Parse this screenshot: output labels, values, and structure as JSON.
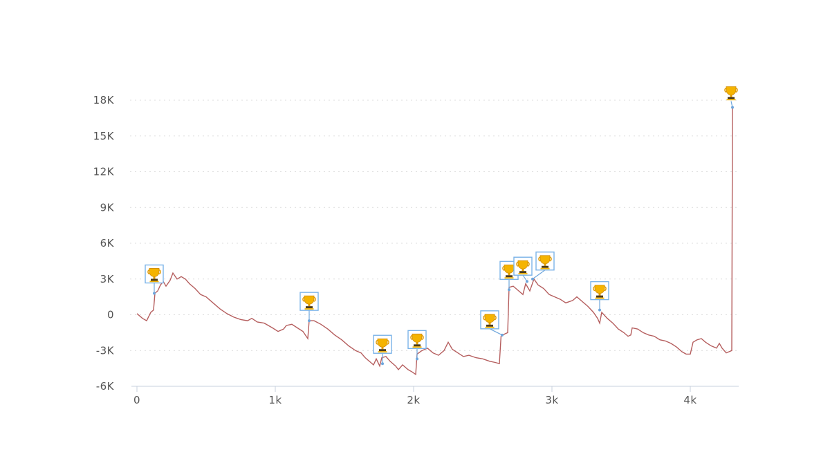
{
  "chart_data": {
    "type": "line",
    "title": "",
    "xlabel": "",
    "ylabel": "",
    "xlim": [
      0,
      4350
    ],
    "ylim": [
      -6000,
      18000
    ],
    "x_ticks": [
      0,
      1000,
      2000,
      3000,
      4000
    ],
    "x_tick_labels": [
      "0",
      "1k",
      "2k",
      "3k",
      "4k"
    ],
    "y_ticks": [
      -6000,
      -3000,
      0,
      3000,
      6000,
      9000,
      12000,
      15000,
      18000
    ],
    "y_tick_labels": [
      "-6K",
      "-3K",
      "0",
      "3K",
      "6K",
      "9K",
      "12K",
      "15K",
      "18K"
    ],
    "grid": true,
    "series": [
      {
        "color": "#b55e5e",
        "points": [
          [
            0,
            100
          ],
          [
            40,
            -300
          ],
          [
            70,
            -500
          ],
          [
            100,
            200
          ],
          [
            120,
            400
          ],
          [
            130,
            1800
          ],
          [
            150,
            2000
          ],
          [
            170,
            2500
          ],
          [
            190,
            2800
          ],
          [
            210,
            2400
          ],
          [
            240,
            2900
          ],
          [
            260,
            3500
          ],
          [
            290,
            3000
          ],
          [
            320,
            3200
          ],
          [
            350,
            3000
          ],
          [
            380,
            2600
          ],
          [
            420,
            2200
          ],
          [
            460,
            1700
          ],
          [
            500,
            1500
          ],
          [
            550,
            1000
          ],
          [
            600,
            500
          ],
          [
            650,
            100
          ],
          [
            700,
            -200
          ],
          [
            750,
            -400
          ],
          [
            800,
            -500
          ],
          [
            830,
            -300
          ],
          [
            870,
            -600
          ],
          [
            920,
            -700
          ],
          [
            980,
            -1100
          ],
          [
            1020,
            -1400
          ],
          [
            1060,
            -1200
          ],
          [
            1080,
            -900
          ],
          [
            1120,
            -800
          ],
          [
            1160,
            -1100
          ],
          [
            1200,
            -1400
          ],
          [
            1235,
            -2000
          ],
          [
            1245,
            -500
          ],
          [
            1280,
            -500
          ],
          [
            1330,
            -800
          ],
          [
            1380,
            -1200
          ],
          [
            1430,
            -1700
          ],
          [
            1480,
            -2100
          ],
          [
            1530,
            -2600
          ],
          [
            1580,
            -3000
          ],
          [
            1620,
            -3200
          ],
          [
            1650,
            -3600
          ],
          [
            1690,
            -4000
          ],
          [
            1710,
            -4200
          ],
          [
            1730,
            -3700
          ],
          [
            1755,
            -4300
          ],
          [
            1770,
            -3600
          ],
          [
            1800,
            -3500
          ],
          [
            1830,
            -3900
          ],
          [
            1870,
            -4300
          ],
          [
            1890,
            -4600
          ],
          [
            1920,
            -4200
          ],
          [
            1960,
            -4600
          ],
          [
            1990,
            -4800
          ],
          [
            2015,
            -5000
          ],
          [
            2025,
            -3300
          ],
          [
            2060,
            -3000
          ],
          [
            2100,
            -2800
          ],
          [
            2140,
            -3200
          ],
          [
            2180,
            -3400
          ],
          [
            2220,
            -3000
          ],
          [
            2250,
            -2300
          ],
          [
            2280,
            -2900
          ],
          [
            2320,
            -3200
          ],
          [
            2360,
            -3500
          ],
          [
            2400,
            -3400
          ],
          [
            2450,
            -3600
          ],
          [
            2500,
            -3700
          ],
          [
            2550,
            -3900
          ],
          [
            2590,
            -4000
          ],
          [
            2620,
            -4100
          ],
          [
            2632,
            -1800
          ],
          [
            2660,
            -1600
          ],
          [
            2680,
            -1500
          ],
          [
            2690,
            2300
          ],
          [
            2720,
            2400
          ],
          [
            2760,
            2000
          ],
          [
            2790,
            1700
          ],
          [
            2810,
            2600
          ],
          [
            2840,
            2000
          ],
          [
            2870,
            3000
          ],
          [
            2900,
            2500
          ],
          [
            2940,
            2200
          ],
          [
            2980,
            1700
          ],
          [
            3020,
            1500
          ],
          [
            3060,
            1300
          ],
          [
            3100,
            1000
          ],
          [
            3150,
            1200
          ],
          [
            3180,
            1500
          ],
          [
            3220,
            1100
          ],
          [
            3260,
            700
          ],
          [
            3300,
            200
          ],
          [
            3330,
            -300
          ],
          [
            3345,
            -700
          ],
          [
            3360,
            200
          ],
          [
            3400,
            -300
          ],
          [
            3440,
            -700
          ],
          [
            3480,
            -1200
          ],
          [
            3520,
            -1500
          ],
          [
            3550,
            -1800
          ],
          [
            3570,
            -1700
          ],
          [
            3580,
            -1100
          ],
          [
            3620,
            -1200
          ],
          [
            3660,
            -1500
          ],
          [
            3700,
            -1700
          ],
          [
            3740,
            -1800
          ],
          [
            3780,
            -2100
          ],
          [
            3820,
            -2200
          ],
          [
            3860,
            -2400
          ],
          [
            3900,
            -2700
          ],
          [
            3940,
            -3100
          ],
          [
            3970,
            -3300
          ],
          [
            4000,
            -3300
          ],
          [
            4020,
            -2300
          ],
          [
            4050,
            -2100
          ],
          [
            4080,
            -2000
          ],
          [
            4110,
            -2300
          ],
          [
            4150,
            -2600
          ],
          [
            4190,
            -2800
          ],
          [
            4210,
            -2400
          ],
          [
            4230,
            -2800
          ],
          [
            4260,
            -3200
          ],
          [
            4280,
            -3100
          ],
          [
            4300,
            -3000
          ],
          [
            4305,
            17400
          ]
        ]
      }
    ],
    "markers": [
      {
        "icon": "trophy-icon",
        "x": 125,
        "y": 1800
      },
      {
        "icon": "trophy-icon",
        "x": 1245,
        "y": -500
      },
      {
        "icon": "trophy-icon",
        "x": 1775,
        "y": -4100
      },
      {
        "icon": "trophy-icon",
        "x": 2025,
        "y": -3700
      },
      {
        "icon": "trophy-icon",
        "x": 2640,
        "y": -1700
      },
      {
        "icon": "trophy-icon",
        "x": 2690,
        "y": 2100
      },
      {
        "icon": "trophy-icon",
        "x": 2820,
        "y": 2800
      },
      {
        "icon": "trophy-icon",
        "x": 2860,
        "y": 3000
      },
      {
        "icon": "trophy-icon",
        "x": 3345,
        "y": 400
      },
      {
        "icon": "trophy-icon",
        "x": 4305,
        "y": 17400
      }
    ]
  }
}
